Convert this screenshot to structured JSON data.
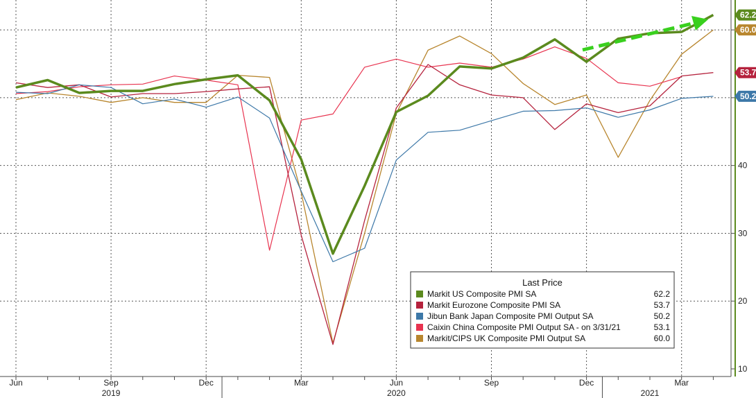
{
  "chart_data": {
    "type": "line",
    "title": "",
    "xlabel": "",
    "ylabel": "",
    "ylim": [
      10,
      64
    ],
    "y_ticks": [
      10,
      20,
      30,
      40,
      50,
      60
    ],
    "grid": true,
    "legend_placement": "bottom-right",
    "legend_title": "Last Price",
    "x_month_labels": [
      {
        "i": 0,
        "label": "Jun"
      },
      {
        "i": 3,
        "label": "Sep"
      },
      {
        "i": 6,
        "label": "Dec"
      },
      {
        "i": 9,
        "label": "Mar"
      },
      {
        "i": 12,
        "label": "Jun"
      },
      {
        "i": 15,
        "label": "Sep"
      },
      {
        "i": 18,
        "label": "Dec"
      },
      {
        "i": 21,
        "label": "Mar"
      }
    ],
    "x_year_labels": [
      {
        "i": 3,
        "label": "2019"
      },
      {
        "i": 12,
        "label": "2020"
      },
      {
        "i": 20,
        "label": "2021"
      }
    ],
    "x_months": [
      "2019-06",
      "2019-07",
      "2019-08",
      "2019-09",
      "2019-10",
      "2019-11",
      "2019-12",
      "2020-01",
      "2020-02",
      "2020-03",
      "2020-04",
      "2020-05",
      "2020-06",
      "2020-07",
      "2020-08",
      "2020-09",
      "2020-10",
      "2020-11",
      "2020-12",
      "2021-01",
      "2021-02",
      "2021-03",
      "2021-04"
    ],
    "series": [
      {
        "name": "Markit US Composite PMI SA",
        "last": "62.2",
        "color": "#5b8a1e",
        "width": 3.5,
        "values": [
          51.5,
          52.6,
          50.7,
          51.0,
          51.0,
          52.0,
          52.7,
          53.3,
          49.6,
          40.9,
          27.0,
          37.0,
          47.9,
          50.3,
          54.6,
          54.3,
          55.9,
          58.6,
          55.3,
          58.7,
          59.5,
          59.7,
          62.2
        ]
      },
      {
        "name": "Markit Eurozone Composite PMI SA",
        "last": "53.7",
        "color": "#b5223d",
        "width": 1.3,
        "values": [
          52.2,
          51.5,
          51.9,
          50.1,
          50.6,
          50.6,
          50.9,
          51.3,
          51.6,
          29.7,
          13.6,
          31.9,
          48.5,
          54.9,
          51.9,
          50.4,
          50.0,
          45.3,
          49.1,
          47.8,
          48.8,
          53.2,
          53.7
        ]
      },
      {
        "name": "Jibun Bank Japan Composite PMI Output SA",
        "last": "50.2",
        "color": "#3d78a8",
        "width": 1.2,
        "values": [
          50.8,
          50.6,
          51.9,
          51.5,
          49.1,
          49.8,
          48.6,
          50.1,
          47.0,
          36.2,
          25.8,
          27.8,
          40.8,
          44.9,
          45.2,
          46.6,
          48.0,
          48.1,
          48.5,
          47.1,
          48.2,
          49.9,
          50.2
        ]
      },
      {
        "name": "Caixin China Composite PMI Output SA -  on 3/31/21",
        "last": "53.1",
        "color": "#e8334f",
        "width": 1.2,
        "values": [
          50.6,
          50.9,
          51.6,
          51.9,
          52.0,
          53.2,
          52.6,
          51.9,
          27.5,
          46.7,
          47.6,
          54.5,
          55.7,
          54.5,
          55.1,
          54.5,
          55.7,
          57.5,
          55.8,
          52.2,
          51.7,
          53.1
        ]
      },
      {
        "name": "Markit/CIPS UK Composite PMI Output SA",
        "last": "60.0",
        "color": "#b8862e",
        "width": 1.3,
        "values": [
          49.7,
          50.7,
          50.2,
          49.3,
          50.0,
          49.3,
          49.3,
          53.3,
          53.0,
          36.0,
          13.8,
          30.0,
          47.7,
          57.0,
          59.1,
          56.5,
          52.1,
          49.0,
          50.4,
          41.2,
          49.6,
          56.4,
          60.0
        ]
      }
    ],
    "right_axis_badges": [
      {
        "value": 62.2,
        "label": "62.2",
        "color": "#5b8a1e"
      },
      {
        "value": 60.0,
        "label": "60.0",
        "color": "#b8862e"
      },
      {
        "value": 53.7,
        "label": "53.7",
        "color": "#b5223d"
      },
      {
        "value": 50.2,
        "label": "50.2",
        "color": "#3d78a8"
      }
    ],
    "trend_arrow_color": "#39d01e"
  }
}
